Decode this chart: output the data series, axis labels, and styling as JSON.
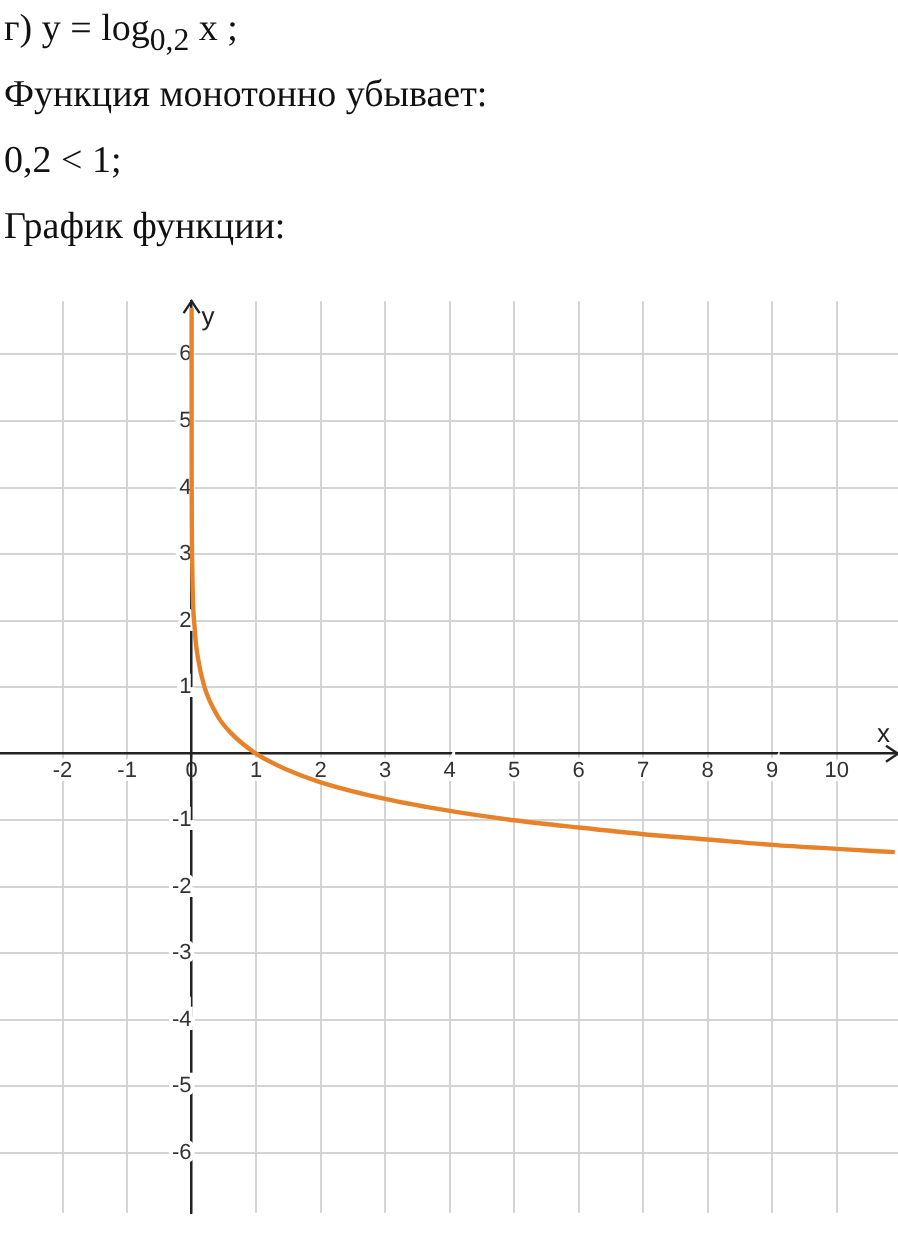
{
  "chart_data": {
    "type": "line",
    "title": "г) y = log$_{0,2}$ x ;",
    "annotations": [
      "Функция монотонно убывает:",
      "0,2 < 1;",
      "График функции:"
    ],
    "xlabel": "x",
    "ylabel": "y",
    "x": [
      2e-05,
      0.0001,
      0.001,
      0.01,
      0.05,
      0.1,
      0.2,
      0.4,
      0.6,
      1,
      1.5,
      2,
      3,
      4,
      5,
      6,
      7,
      8,
      9,
      10,
      10.9
    ],
    "series": [
      {
        "color": "#e8822a",
        "values": [
          6.7,
          5.72,
          4.29,
          2.86,
          1.86,
          1.43,
          1,
          0.57,
          0.32,
          0,
          -0.25,
          -0.43,
          -0.68,
          -0.86,
          -1,
          -1.11,
          -1.21,
          -1.29,
          -1.37,
          -1.43,
          -1.48
        ]
      }
    ],
    "xlim": [
      -2.97,
      10.95
    ],
    "ylim": [
      -6.9,
      6.8
    ],
    "xticks": [
      -2,
      -1,
      0,
      1,
      2,
      3,
      4,
      5,
      6,
      7,
      8,
      9,
      10
    ],
    "yticks": [
      -6,
      -5,
      -4,
      -3,
      -2,
      -1,
      1,
      2,
      3,
      4,
      5,
      6
    ],
    "grid": true,
    "marker": "none"
  }
}
